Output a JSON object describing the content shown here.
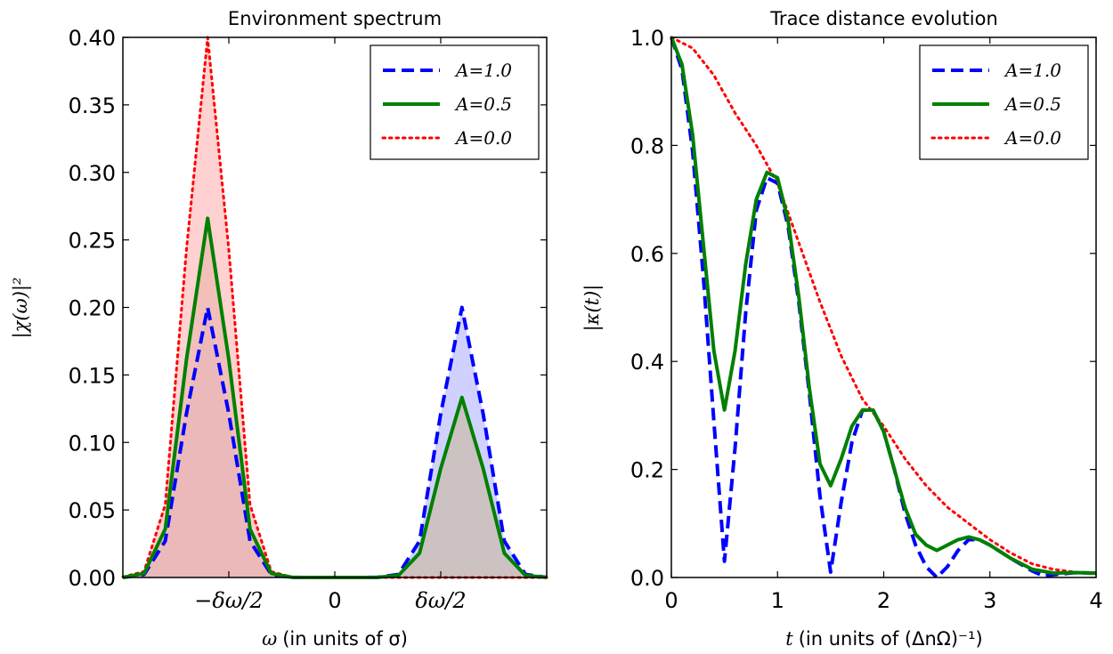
{
  "chart_data": [
    {
      "type": "area",
      "title": "Environment spectrum",
      "xlabel": {
        "math": "ω",
        "text": "(in units of σ)"
      },
      "ylabel": "|χ(ω)|²",
      "xlim": [
        -5,
        5
      ],
      "ylim": [
        0,
        0.4
      ],
      "yticks": [
        "0.00",
        "0.05",
        "0.10",
        "0.15",
        "0.20",
        "0.25",
        "0.30",
        "0.35",
        "0.40"
      ],
      "xticks": [
        {
          "value": -2.5,
          "label": "−δω/2",
          "math": true
        },
        {
          "value": 0,
          "label": "0",
          "math": false
        },
        {
          "value": 2.5,
          "label": "δω/2",
          "math": true
        }
      ],
      "legend_position": "top-right",
      "series": [
        {
          "name": "A=1.0",
          "color": "#0000ff",
          "style": "dashed",
          "fill": "#b3b3ff",
          "x": [
            -5,
            -4.5,
            -4,
            -3.5,
            -3,
            -2.5,
            -2,
            -1.5,
            -1,
            -0.5,
            0,
            0.5,
            1,
            1.5,
            2,
            2.5,
            3,
            3.5,
            4,
            4.5,
            5
          ],
          "y": [
            0,
            0.0022,
            0.027,
            0.1213,
            0.2,
            0.1213,
            0.027,
            0.0022,
            0.0001,
            0,
            0,
            0,
            0.0001,
            0.0022,
            0.027,
            0.1213,
            0.2,
            0.1213,
            0.027,
            0.0022,
            0.0001
          ]
        },
        {
          "name": "A=0.5",
          "color": "#008000",
          "style": "solid",
          "fill": "#c8b89a",
          "x": [
            -5,
            -4.5,
            -4,
            -3.5,
            -3,
            -2.5,
            -2,
            -1.5,
            -1,
            -0.5,
            0,
            0.5,
            1,
            1.5,
            2,
            2.5,
            3,
            3.5,
            4,
            4.5,
            5
          ],
          "y": [
            0,
            0.003,
            0.0359,
            0.1613,
            0.266,
            0.1613,
            0.0359,
            0.003,
            0.0001,
            0,
            0,
            0,
            0.0001,
            0.0015,
            0.018,
            0.0808,
            0.1333,
            0.0808,
            0.018,
            0.0015,
            0.0001
          ]
        },
        {
          "name": "A=0.0",
          "color": "#ff0000",
          "style": "dotted",
          "fill": "#ffb3b3",
          "x": [
            -5,
            -4.5,
            -4,
            -3.5,
            -3,
            -2.5,
            -2,
            -1.5,
            -1,
            -0.5,
            0,
            0.5,
            1,
            1.5,
            2,
            2.5,
            3,
            3.5,
            4,
            4.5,
            5
          ],
          "y": [
            0.0004,
            0.0044,
            0.054,
            0.2427,
            0.4,
            0.2427,
            0.054,
            0.0044,
            0.0001,
            0,
            0,
            0,
            0,
            0,
            0,
            0,
            0,
            0,
            0,
            0,
            0
          ]
        }
      ]
    },
    {
      "type": "line",
      "title": "Trace distance evolution",
      "xlabel": {
        "math": "t",
        "text": "(in units of (ΔnΩ)⁻¹)"
      },
      "ylabel": "|κ(t)|",
      "xlim": [
        0,
        4
      ],
      "ylim": [
        0,
        1
      ],
      "xticks": [
        "0",
        "1",
        "2",
        "3",
        "4"
      ],
      "yticks": [
        "0.0",
        "0.2",
        "0.4",
        "0.6",
        "0.8",
        "1.0"
      ],
      "legend_position": "top-right",
      "series": [
        {
          "name": "A=1.0",
          "color": "#0000ff",
          "style": "dashed",
          "x": [
            0,
            0.1,
            0.2,
            0.3,
            0.4,
            0.5,
            0.6,
            0.7,
            0.8,
            0.9,
            1.0,
            1.1,
            1.2,
            1.3,
            1.4,
            1.5,
            1.6,
            1.7,
            1.8,
            1.9,
            2.0,
            2.1,
            2.2,
            2.3,
            2.4,
            2.5,
            2.6,
            2.7,
            2.8,
            2.9,
            3.0,
            3.2,
            3.4,
            3.5,
            3.6,
            3.8,
            4.0
          ],
          "y": [
            1.0,
            0.94,
            0.79,
            0.56,
            0.29,
            0.03,
            0.24,
            0.49,
            0.68,
            0.74,
            0.73,
            0.65,
            0.51,
            0.34,
            0.15,
            0.01,
            0.14,
            0.25,
            0.31,
            0.31,
            0.27,
            0.2,
            0.12,
            0.06,
            0.02,
            0.0,
            0.02,
            0.05,
            0.07,
            0.07,
            0.06,
            0.035,
            0.012,
            0.003,
            0.005,
            0.009,
            0.008
          ]
        },
        {
          "name": "A=0.5",
          "color": "#008000",
          "style": "solid",
          "x": [
            0,
            0.1,
            0.2,
            0.3,
            0.4,
            0.5,
            0.6,
            0.7,
            0.8,
            0.9,
            1.0,
            1.1,
            1.2,
            1.3,
            1.4,
            1.5,
            1.6,
            1.7,
            1.8,
            1.9,
            2.0,
            2.1,
            2.2,
            2.3,
            2.4,
            2.5,
            2.6,
            2.7,
            2.8,
            2.9,
            3.0,
            3.2,
            3.4,
            3.6,
            3.8,
            4.0
          ],
          "y": [
            1.0,
            0.95,
            0.82,
            0.62,
            0.42,
            0.31,
            0.42,
            0.58,
            0.7,
            0.75,
            0.74,
            0.66,
            0.52,
            0.35,
            0.21,
            0.17,
            0.22,
            0.28,
            0.31,
            0.31,
            0.27,
            0.2,
            0.13,
            0.08,
            0.06,
            0.05,
            0.06,
            0.07,
            0.075,
            0.07,
            0.06,
            0.035,
            0.015,
            0.008,
            0.009,
            0.008
          ]
        },
        {
          "name": "A=0.0",
          "color": "#ff0000",
          "style": "dotted",
          "x": [
            0,
            0.2,
            0.4,
            0.6,
            0.8,
            1.0,
            1.2,
            1.4,
            1.6,
            1.8,
            2.0,
            2.2,
            2.4,
            2.6,
            2.8,
            3.0,
            3.2,
            3.4,
            3.6,
            3.8,
            4.0
          ],
          "y": [
            1.0,
            0.98,
            0.93,
            0.86,
            0.8,
            0.73,
            0.62,
            0.51,
            0.41,
            0.33,
            0.28,
            0.22,
            0.17,
            0.13,
            0.1,
            0.07,
            0.045,
            0.025,
            0.015,
            0.01,
            0.008
          ]
        }
      ]
    }
  ]
}
